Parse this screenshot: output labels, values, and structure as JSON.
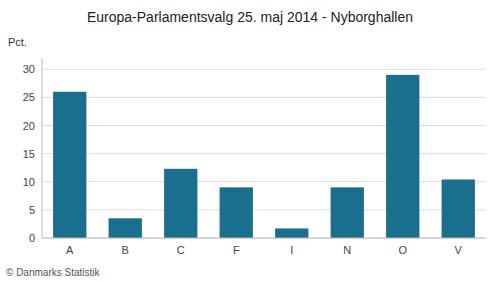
{
  "chart_data": {
    "type": "bar",
    "title": "Europa-Parlamentsvalg 25. maj 2014 - Nyborghallen",
    "ylabel": "Pct.",
    "footer": "© Danmarks Statistik",
    "categories": [
      "A",
      "B",
      "C",
      "F",
      "I",
      "N",
      "O",
      "V"
    ],
    "values": [
      26.0,
      3.5,
      12.3,
      9.0,
      1.7,
      9.0,
      29.0,
      10.4
    ],
    "color": "#1a6e8e",
    "ylim": [
      0,
      32
    ],
    "yticks": [
      0,
      5,
      10,
      15,
      20,
      25,
      30
    ],
    "grid": true
  }
}
